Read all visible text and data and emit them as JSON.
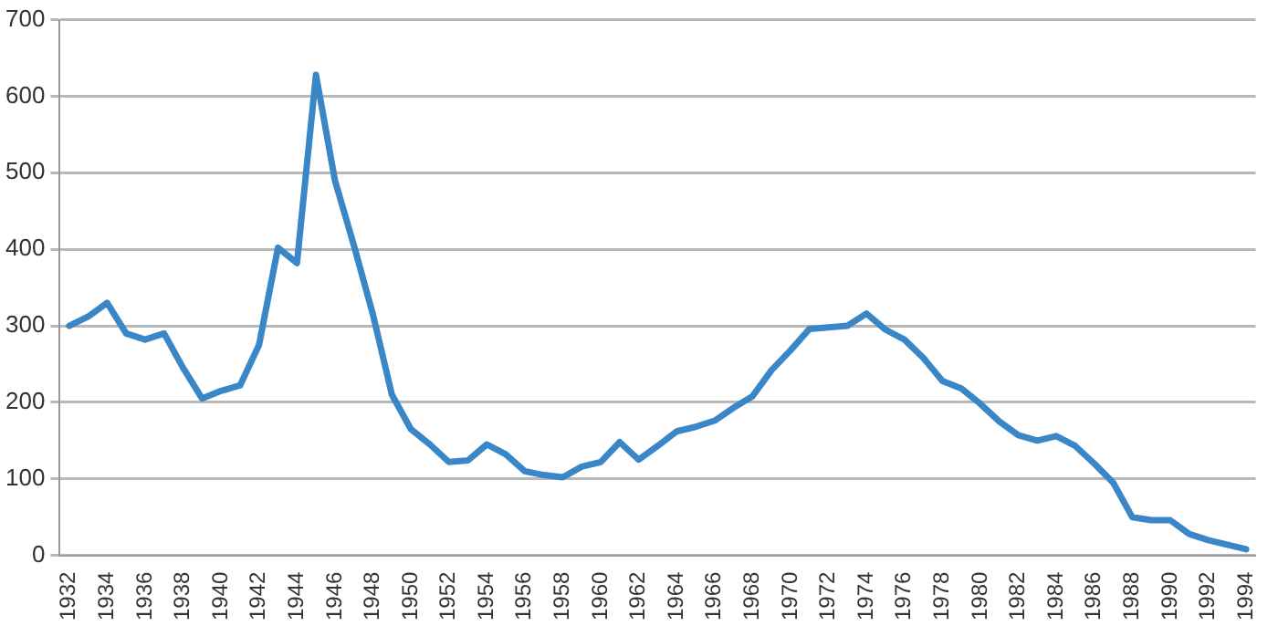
{
  "chart_data": {
    "type": "line",
    "categories": [
      "1932",
      null,
      "1934",
      null,
      "1936",
      null,
      "1938",
      null,
      "1940",
      null,
      "1942",
      null,
      "1944",
      null,
      "1946",
      null,
      "1948",
      null,
      "1950",
      null,
      "1952",
      null,
      "1954",
      null,
      "1956",
      null,
      "1958",
      null,
      "1960",
      null,
      "1962",
      null,
      "1964",
      null,
      "1966",
      null,
      "1968",
      null,
      "1970",
      null,
      "1972",
      null,
      "1974",
      null,
      "1976",
      null,
      "1978",
      null,
      "1980",
      null,
      "1982",
      null,
      "1984",
      null,
      "1986",
      null,
      "1988",
      null,
      "1990",
      null,
      "1992",
      null,
      "1994"
    ],
    "series": [
      {
        "color": "#3a87c8",
        "values": [
          300,
          312,
          330,
          290,
          282,
          290,
          245,
          205,
          215,
          222,
          275,
          402,
          382,
          628,
          490,
          405,
          315,
          210,
          165,
          145,
          122,
          124,
          145,
          132,
          110,
          105,
          102,
          116,
          122,
          148,
          125,
          143,
          162,
          168,
          176,
          193,
          208,
          242,
          268,
          296,
          298,
          300,
          316,
          295,
          282,
          258,
          228,
          218,
          198,
          175,
          157,
          150,
          156,
          143,
          120,
          95,
          50,
          46,
          46,
          28,
          20,
          14,
          8
        ]
      }
    ],
    "ylim": [
      0,
      700
    ],
    "yticks": [
      0,
      100,
      200,
      300,
      400,
      500,
      600,
      700
    ],
    "grid": "y",
    "legend": false,
    "marker": "none",
    "line_style": "solid"
  }
}
